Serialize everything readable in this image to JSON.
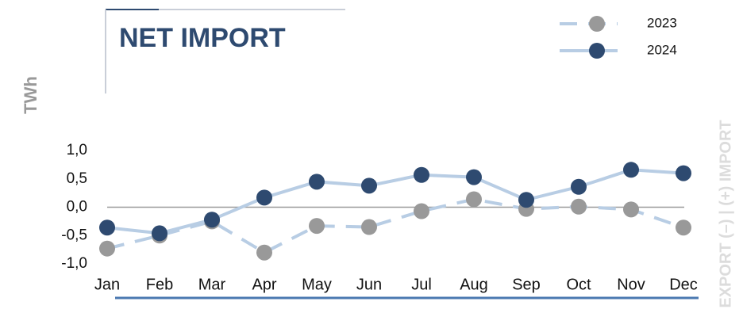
{
  "chart_data": {
    "type": "line",
    "title": "NET IMPORT",
    "y_label": "TWh",
    "y2_label": "EXPORT (–) | (+) IMPORT",
    "categories": [
      "Jan",
      "Feb",
      "Mar",
      "Apr",
      "May",
      "Jun",
      "Jul",
      "Aug",
      "Sep",
      "Oct",
      "Nov",
      "Dec"
    ],
    "series": [
      {
        "name": "2023",
        "color": "#b8cde4",
        "marker_color": "#999999",
        "line_style": "dashed",
        "values": [
          -0.73,
          -0.5,
          -0.25,
          -0.8,
          -0.33,
          -0.35,
          -0.07,
          0.14,
          -0.03,
          0.01,
          -0.04,
          -0.36
        ]
      },
      {
        "name": "2024",
        "color": "#b8cde4",
        "marker_color": "#2e4a70",
        "line_style": "solid",
        "values": [
          -0.36,
          -0.46,
          -0.22,
          0.17,
          0.45,
          0.38,
          0.57,
          0.53,
          0.13,
          0.36,
          0.66,
          0.6
        ]
      }
    ],
    "ylim": [
      -1,
      1
    ],
    "yticks": [
      {
        "value": 1,
        "label": "1,0"
      },
      {
        "value": 0.5,
        "label": "0,5"
      },
      {
        "value": 0,
        "label": "0,0"
      },
      {
        "value": -0.5,
        "label": "-0,5"
      },
      {
        "value": -1,
        "label": "-1,0"
      }
    ],
    "legend": "top-right"
  }
}
